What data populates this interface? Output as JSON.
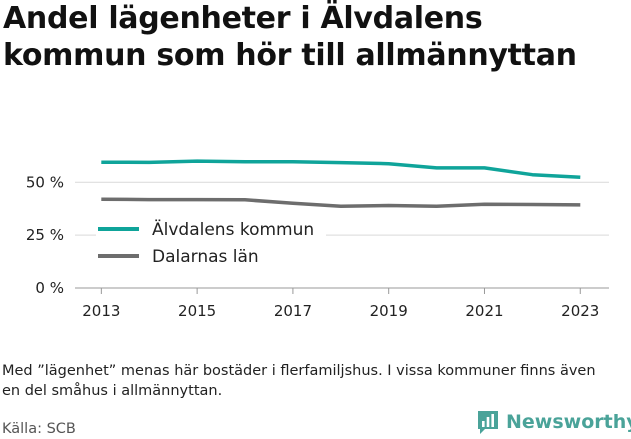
{
  "title": "Andel lägenheter i Älvdalens kommun som hör till allmännyttan",
  "note": "Med ”lägenhet” menas här bostäder i flerfamiljshus. I vissa kommuner finns även en del småhus i allmännyttan.",
  "source": "Källa: SCB",
  "brand": {
    "name": "Newsworthy",
    "icon": "bar-chart-speech-icon",
    "color": "#4aa399"
  },
  "colors": {
    "series_1": "#0fa49a",
    "series_2": "#6d6d6d",
    "grid": "#d9d9d9",
    "axis": "#999999"
  },
  "chart_data": {
    "type": "line",
    "x": [
      2013,
      2014,
      2015,
      2016,
      2017,
      2018,
      2019,
      2020,
      2021,
      2022,
      2023
    ],
    "xticks": [
      2013,
      2015,
      2017,
      2019,
      2021,
      2023
    ],
    "yticks": [
      0,
      25,
      50
    ],
    "ytick_labels": [
      "0 %",
      "25 %",
      "50 %"
    ],
    "ylim": [
      0,
      70
    ],
    "grid": true,
    "legend_position": "left, inside plot",
    "series": [
      {
        "name": "Älvdalens kommun",
        "color": "#0fa49a",
        "values": [
          59.5,
          59.4,
          60.0,
          59.7,
          59.7,
          59.3,
          58.8,
          56.8,
          56.8,
          53.6,
          52.4
        ]
      },
      {
        "name": "Dalarnas län",
        "color": "#6d6d6d",
        "values": [
          42.0,
          41.8,
          41.8,
          41.7,
          40.1,
          38.7,
          39.0,
          38.7,
          39.6,
          39.5,
          39.3
        ]
      }
    ]
  }
}
